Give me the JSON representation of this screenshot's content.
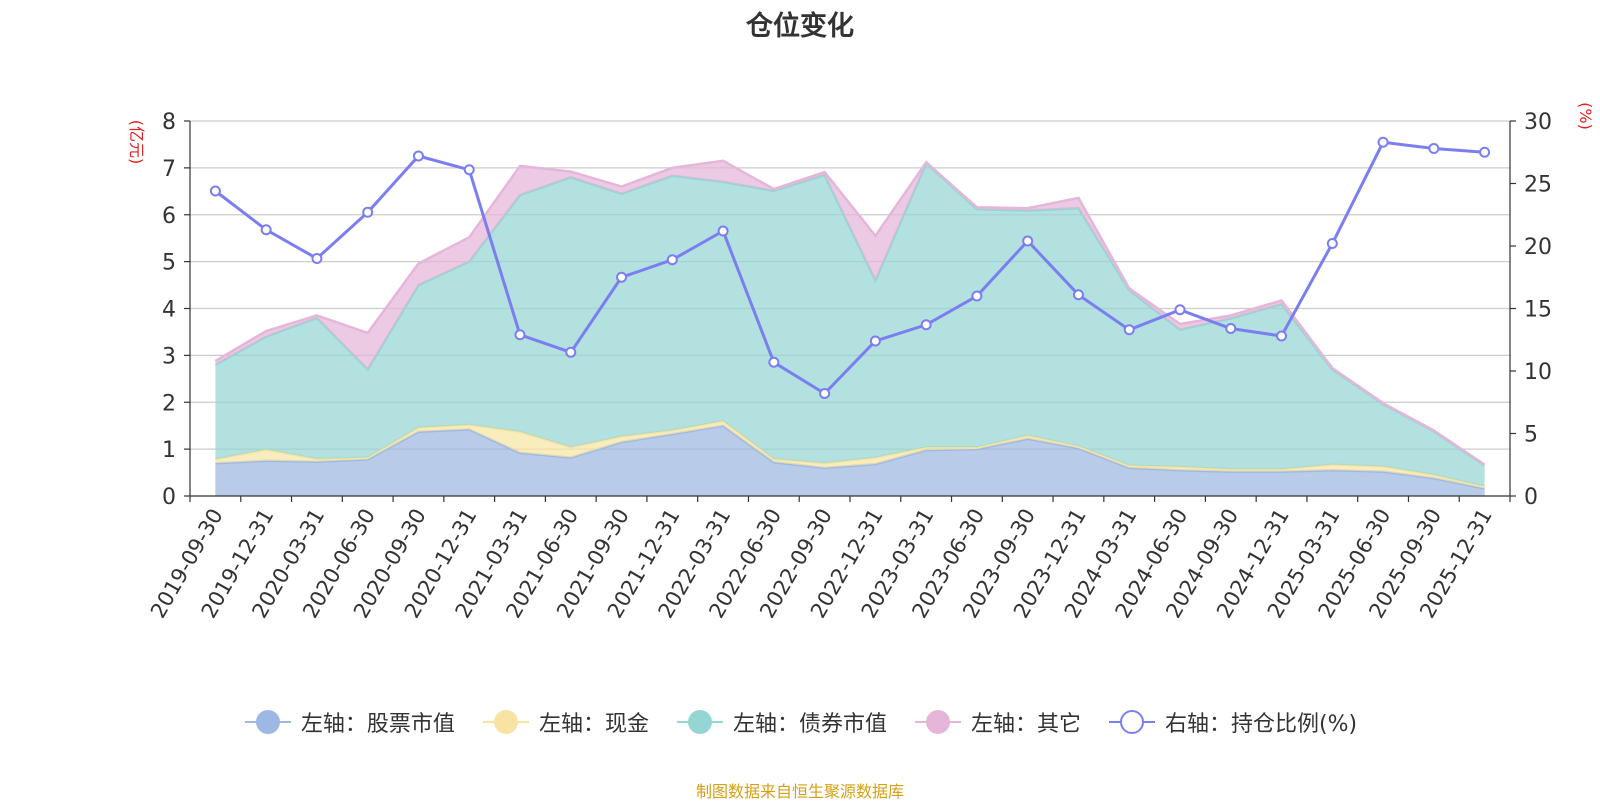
{
  "chart_data": {
    "type": "area",
    "title": "仓位变化",
    "left_axis_label": "(亿元)",
    "right_axis_label": "(%)",
    "left_ylim": [
      0,
      8
    ],
    "left_ticks": [
      "0",
      "1",
      "2",
      "3",
      "4",
      "5",
      "6",
      "7",
      "8"
    ],
    "right_ylim": [
      0,
      30
    ],
    "right_ticks": [
      "0",
      "5",
      "10",
      "15",
      "20",
      "25",
      "30"
    ],
    "categories": [
      "2019-09-30",
      "2019-12-31",
      "2020-03-31",
      "2020-06-30",
      "2020-09-30",
      "2020-12-31",
      "2021-03-31",
      "2021-06-30",
      "2021-09-30",
      "2021-12-31",
      "2022-03-31",
      "2022-06-30",
      "2022-09-30",
      "2022-12-31",
      "2023-03-31",
      "2023-06-30",
      "2023-09-30",
      "2023-12-31",
      "2024-03-31",
      "2024-06-30",
      "2024-09-30",
      "2024-12-31",
      "2025-03-31",
      "2025-06-30",
      "2025-09-30",
      "2025-12-31"
    ],
    "stacked_series": [
      {
        "name": "左轴：股票市值",
        "color": "#9db8e2",
        "values": [
          0.7,
          0.75,
          0.73,
          0.78,
          1.37,
          1.42,
          0.92,
          0.82,
          1.15,
          1.32,
          1.5,
          0.72,
          0.6,
          0.68,
          0.98,
          1.0,
          1.22,
          1.02,
          0.6,
          0.55,
          0.52,
          0.52,
          0.55,
          0.52,
          0.38,
          0.16
        ]
      },
      {
        "name": "左轴：现金",
        "color": "#f7e4a3",
        "values": [
          0.08,
          0.24,
          0.06,
          0.04,
          0.09,
          0.1,
          0.45,
          0.22,
          0.12,
          0.08,
          0.1,
          0.07,
          0.1,
          0.14,
          0.06,
          0.04,
          0.07,
          0.04,
          0.05,
          0.07,
          0.05,
          0.05,
          0.12,
          0.11,
          0.07,
          0.04
        ]
      },
      {
        "name": "左轴：债券市值",
        "color": "#95d5d3",
        "values": [
          2.02,
          2.41,
          3.01,
          1.88,
          3.04,
          3.48,
          5.05,
          5.76,
          5.18,
          5.43,
          5.1,
          5.72,
          6.15,
          3.78,
          6.06,
          5.08,
          4.8,
          5.08,
          3.74,
          2.93,
          3.22,
          3.52,
          2.03,
          1.33,
          0.93,
          0.45
        ]
      },
      {
        "name": "左轴：其它",
        "color": "#e6b6da",
        "values": [
          0.08,
          0.12,
          0.05,
          0.78,
          0.46,
          0.52,
          0.62,
          0.12,
          0.15,
          0.17,
          0.45,
          0.04,
          0.06,
          0.95,
          0.02,
          0.04,
          0.05,
          0.22,
          0.04,
          0.12,
          0.06,
          0.08,
          0.03,
          0.02,
          0.02,
          0.02
        ]
      }
    ],
    "line_series": {
      "name": "右轴：持仓比例(%)",
      "color": "#7b7ef0",
      "values": [
        24.4,
        21.3,
        19.0,
        22.7,
        27.2,
        26.1,
        12.9,
        11.5,
        17.5,
        18.9,
        21.2,
        10.7,
        8.2,
        12.4,
        13.7,
        16.0,
        20.4,
        16.1,
        13.3,
        14.9,
        13.4,
        12.8,
        20.2,
        28.3,
        27.8,
        27.5
      ]
    },
    "source_note": "制图数据来自恒生聚源数据库"
  }
}
